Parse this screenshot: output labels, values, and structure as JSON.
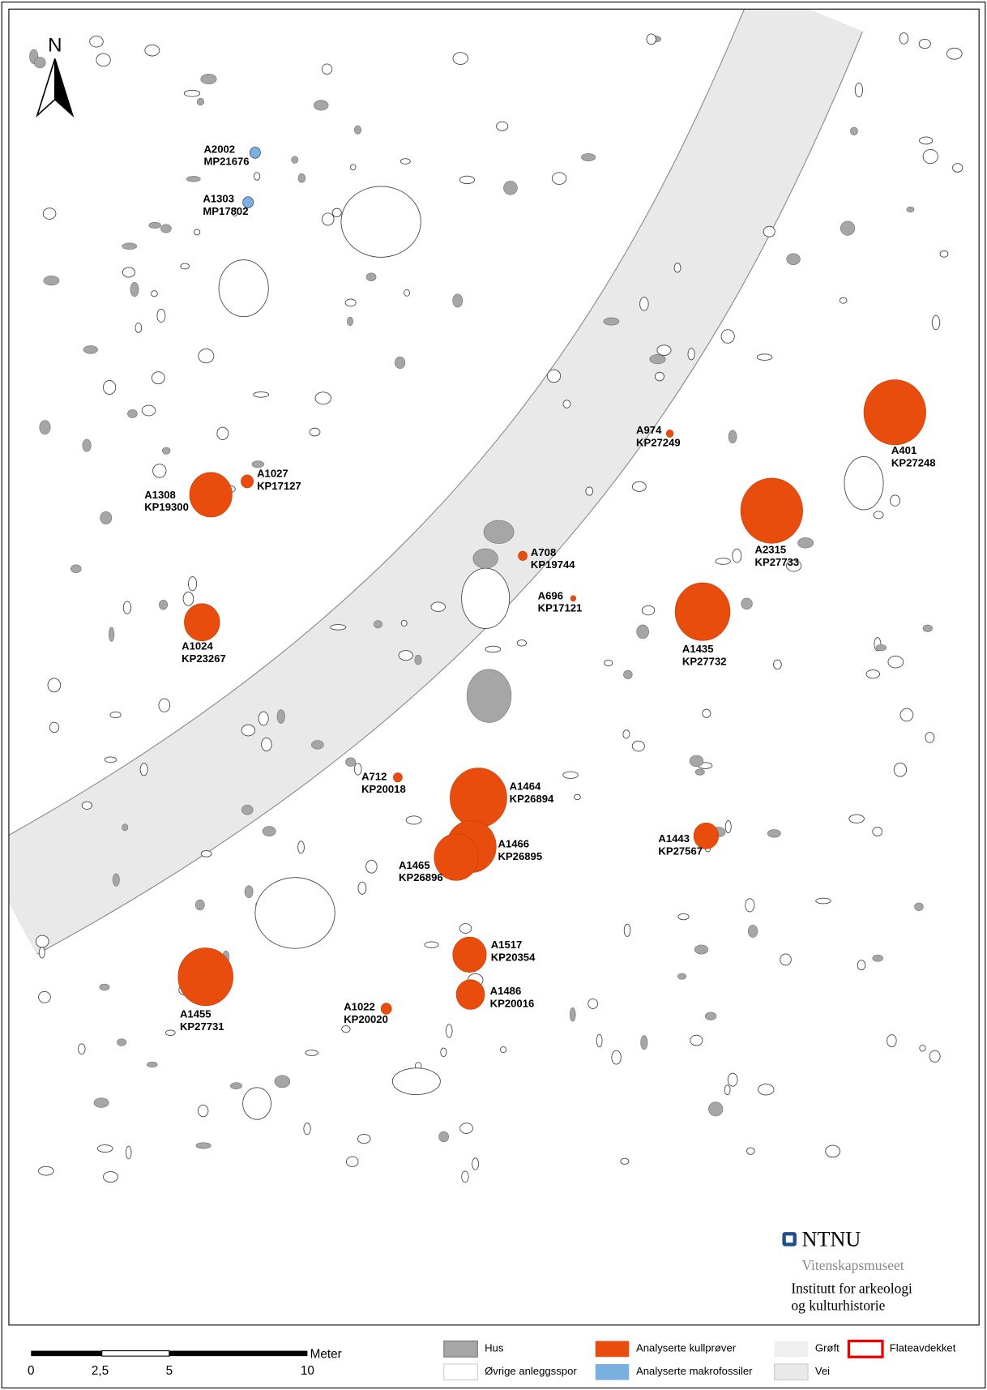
{
  "north": "N",
  "features": [
    {
      "id": "A2002",
      "sample": "MP21676"
    },
    {
      "id": "A1303",
      "sample": "MP17802"
    },
    {
      "id": "A1027",
      "sample": "KP17127"
    },
    {
      "id": "A1308",
      "sample": "KP19300"
    },
    {
      "id": "A1024",
      "sample": "KP23267"
    },
    {
      "id": "A708",
      "sample": "KP19744"
    },
    {
      "id": "A696",
      "sample": "KP17121"
    },
    {
      "id": "A974",
      "sample": "KP27249"
    },
    {
      "id": "A401",
      "sample": "KP27248"
    },
    {
      "id": "A2315",
      "sample": "KP27733"
    },
    {
      "id": "A1435",
      "sample": "KP27732"
    },
    {
      "id": "A712",
      "sample": "KP20018"
    },
    {
      "id": "A1464",
      "sample": "KP26894"
    },
    {
      "id": "A1466",
      "sample": "KP26895"
    },
    {
      "id": "A1465",
      "sample": "KP26896"
    },
    {
      "id": "A1443",
      "sample": "KP27567"
    },
    {
      "id": "A1517",
      "sample": "KP20354"
    },
    {
      "id": "A1486",
      "sample": "KP20016"
    },
    {
      "id": "A1455",
      "sample": "KP27731"
    },
    {
      "id": "A1022",
      "sample": "KP20020"
    }
  ],
  "logo": {
    "name": "NTNU",
    "museum": "Vitenskapsmuseet",
    "institute_1": "Institutt for arkeologi",
    "institute_2": "og kulturhistorie"
  },
  "scale": {
    "unit": "Meter",
    "labels": [
      "0",
      "2,5",
      "5",
      "10"
    ]
  },
  "legend": [
    "Hus",
    "Øvrige anleggsspor",
    "Analyserte kullprøver",
    "Analyserte makrofossiler",
    "Grøft",
    "Vei",
    "Flateavdekket"
  ]
}
